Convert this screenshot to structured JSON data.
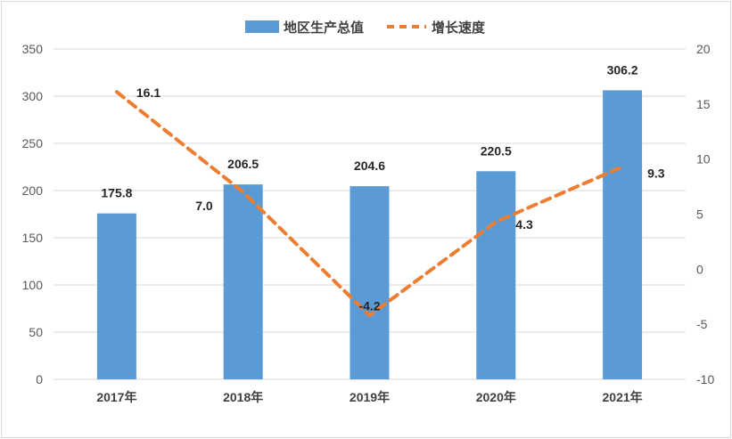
{
  "chart_data": {
    "type": "bar",
    "categories": [
      "2017年",
      "2018年",
      "2019年",
      "2020年",
      "2021年"
    ],
    "series": [
      {
        "name": "地区生产总值",
        "type": "bar",
        "axis": "left",
        "values": [
          175.8,
          206.5,
          204.6,
          220.5,
          306.2
        ],
        "labels": [
          "175.8",
          "206.5",
          "204.6",
          "220.5",
          "306.2"
        ],
        "color": "#5b9bd5"
      },
      {
        "name": "增长速度",
        "type": "line",
        "style": "dashed",
        "axis": "right",
        "values": [
          16.1,
          7.0,
          -4.2,
          4.3,
          9.3
        ],
        "labels": [
          "16.1",
          "7.0",
          "-4.2",
          "4.3",
          "9.3"
        ],
        "color": "#ed7d31"
      }
    ],
    "y_left": {
      "min": 0,
      "max": 350,
      "ticks": [
        "0",
        "50",
        "100",
        "150",
        "200",
        "250",
        "300",
        "350"
      ]
    },
    "y_right": {
      "min": -10,
      "max": 20,
      "ticks": [
        "-10",
        "-5",
        "0",
        "5",
        "10",
        "15",
        "20"
      ]
    },
    "grid": true,
    "legend_position": "top"
  }
}
